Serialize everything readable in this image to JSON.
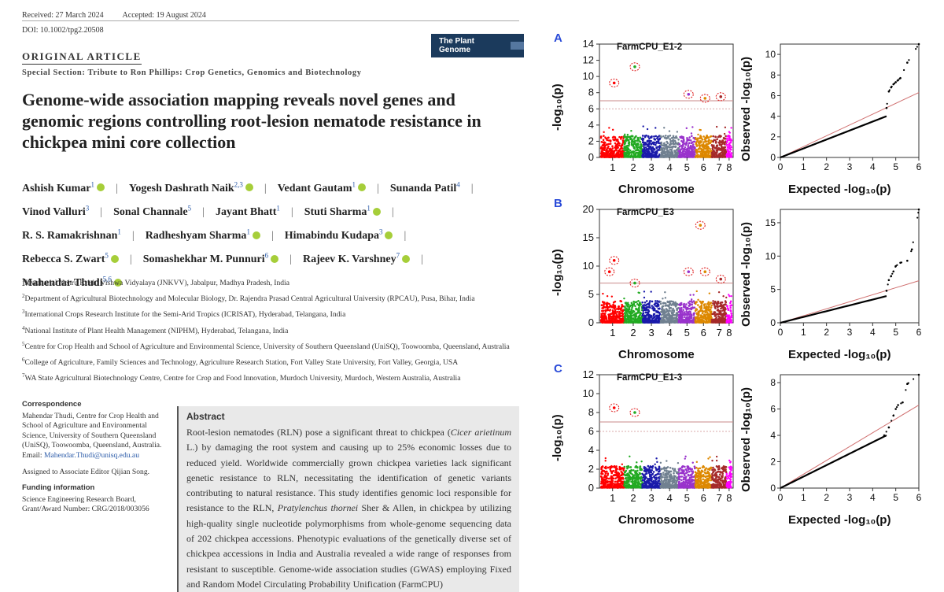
{
  "paper": {
    "received": "Received: 27 March 2024",
    "accepted": "Accepted: 19 August 2024",
    "doi": "DOI: 10.1002/tpg2.20508",
    "journal_logo": "The Plant Genome",
    "article_type": "ORIGINAL ARTICLE",
    "special_section": "Special Section: Tribute to Ron Phillips: Crop Genetics, Genomics and Biotechnology",
    "title": "Genome-wide association mapping reveals novel genes and genomic regions controlling root-lesion nematode resistance in chickpea mini core collection",
    "authors": [
      {
        "name": "Ashish Kumar",
        "sup": "1",
        "orcid": true
      },
      {
        "name": "Yogesh Dashrath Naik",
        "sup": "2,3",
        "orcid": true
      },
      {
        "name": "Vedant Gautam",
        "sup": "1",
        "orcid": true
      },
      {
        "name": "Sunanda Patil",
        "sup": "4",
        "orcid": false
      },
      {
        "name": "Vinod Valluri",
        "sup": "3",
        "orcid": false
      },
      {
        "name": "Sonal Channale",
        "sup": "5",
        "orcid": false
      },
      {
        "name": "Jayant Bhatt",
        "sup": "1",
        "orcid": false
      },
      {
        "name": "Stuti Sharma",
        "sup": "1",
        "orcid": true
      },
      {
        "name": "R. S. Ramakrishnan",
        "sup": "1",
        "orcid": false
      },
      {
        "name": "Radheshyam Sharma",
        "sup": "1",
        "orcid": true
      },
      {
        "name": "Himabindu Kudapa",
        "sup": "3",
        "orcid": true
      },
      {
        "name": "Rebecca S. Zwart",
        "sup": "5",
        "orcid": true
      },
      {
        "name": "Somashekhar M. Punnuri",
        "sup": "6",
        "orcid": true
      },
      {
        "name": "Rajeev K. Varshney",
        "sup": "7",
        "orcid": true
      },
      {
        "name": "Mahendar Thudi",
        "sup": "5,6",
        "orcid": true
      }
    ],
    "affiliations": [
      {
        "sup": "1",
        "text": "Jawaharlal Nehru Krishi Vishwa Vidyalaya (JNKVV), Jabalpur, Madhya Pradesh, India"
      },
      {
        "sup": "2",
        "text": "Department of Agricultural Biotechnology and Molecular Biology, Dr. Rajendra Prasad Central Agricultural University (RPCAU), Pusa, Bihar, India"
      },
      {
        "sup": "3",
        "text": "International Crops Research Institute for the Semi-Arid Tropics (ICRISAT), Hyderabad, Telangana, India"
      },
      {
        "sup": "4",
        "text": "National Institute of Plant Health Management (NIPHM), Hyderabad, Telangana, India"
      },
      {
        "sup": "5",
        "text": "Centre for Crop Health and School of Agriculture and Environmental Science, University of Southern Queensland (UniSQ), Toowoomba, Queensland, Australia"
      },
      {
        "sup": "6",
        "text": "College of Agriculture, Family Sciences and Technology, Agriculture Research Station, Fort Valley State University, Fort Valley, Georgia, USA"
      },
      {
        "sup": "7",
        "text": "WA State Agricultural Biotechnology Centre, Centre for Crop and Food Innovation, Murdoch University, Murdoch, Western Australia, Australia"
      }
    ],
    "correspondence_heading": "Correspondence",
    "correspondence_text": "Mahendar Thudi, Centre for Crop Health and School of Agriculture and Environmental Science, University of Southern Queensland (UniSQ), Toowoomba, Queensland, Australia.",
    "email_label": "Email:",
    "email": "Mahendar.Thudi@unisq.edu.au",
    "assigned": "Assigned to Associate Editor Qijian Song.",
    "funding_heading": "Funding information",
    "funding_text": "Science Engineering Research Board, Grant/Award Number: CRG/2018/003056",
    "abstract_heading": "Abstract",
    "abstract_1": "Root-lesion nematodes (RLN) pose a significant threat to chickpea (",
    "abstract_italic_1": "Cicer arietinum",
    "abstract_2": " L.) by damaging the root system and causing up to 25% economic losses due to reduced yield. Worldwide commercially grown chickpea varieties lack significant genetic resistance to RLN, necessitating the identification of genetic variants contributing to natural resistance. This study identifies genomic loci responsible for resistance to the RLN, ",
    "abstract_italic_2": "Pratylenchus thornei",
    "abstract_3": " Sher & Allen, in chickpea by utilizing high-quality single nucleotide polymorphisms from whole-genome sequencing data of 202 chickpea accessions. Phenotypic evaluations of the genetically diverse set of chickpea accessions in India and Australia revealed a wide range of responses from resistant to susceptible. Genome-wide association studies (GWAS) employing Fixed and Random Model Circulating Probability Unification (FarmCPU)"
  },
  "figure": {
    "panels": [
      {
        "label": "A",
        "title": "FarmCPU_E1-2"
      },
      {
        "label": "B",
        "title": "FarmCPU_E3"
      },
      {
        "label": "C",
        "title": "FarmCPU_E1-3"
      }
    ],
    "manhattan_xlabel": "Chromosome",
    "manhattan_ylabel": "-log₁₀(p)",
    "qq_xlabel": "Expected -log₁₀(p)",
    "qq_ylabel": "Observed -log₁₀(p)"
  },
  "chart_data": [
    {
      "type": "scatter",
      "subtype": "manhattan",
      "title": "FarmCPU_E1-2",
      "xlabel": "Chromosome",
      "ylabel": "-log10(p)",
      "chromosomes": [
        "1",
        "2",
        "3",
        "4",
        "5",
        "6",
        "7",
        "8"
      ],
      "chromosome_colors": [
        "#ff0000",
        "#22aa22",
        "#1a1aaa",
        "#708090",
        "#9933cc",
        "#dd8800",
        "#a52a2a",
        "#ff00ff"
      ],
      "ylim": [
        0,
        14
      ],
      "yticks": [
        0,
        2,
        4,
        6,
        8,
        10,
        12,
        14
      ],
      "thresholds": [
        7,
        6
      ],
      "significant": [
        {
          "chr": "1",
          "y": 9.2
        },
        {
          "chr": "2",
          "y": 11.2
        },
        {
          "chr": "5",
          "y": 7.8
        },
        {
          "chr": "6",
          "y": 7.3
        },
        {
          "chr": "7",
          "y": 7.5
        }
      ]
    },
    {
      "type": "scatter",
      "subtype": "qq",
      "xlabel": "Expected -log10(p)",
      "ylabel": "Observed -log10(p)",
      "xlim": [
        0,
        6
      ],
      "ylim": [
        0,
        11
      ],
      "xticks": [
        0,
        1,
        2,
        3,
        4,
        5,
        6
      ],
      "yticks": [
        0,
        2,
        4,
        6,
        8,
        10
      ],
      "upper_tail": [
        [
          4.6,
          4.8
        ],
        [
          4.7,
          6.4
        ],
        [
          4.8,
          6.8
        ],
        [
          4.9,
          7.1
        ],
        [
          5.0,
          7.3
        ],
        [
          5.1,
          7.5
        ],
        [
          5.2,
          7.7
        ],
        [
          5.5,
          9.2
        ],
        [
          6.0,
          11.0
        ]
      ]
    },
    {
      "type": "scatter",
      "subtype": "manhattan",
      "title": "FarmCPU_E3",
      "xlabel": "Chromosome",
      "ylabel": "-log10(p)",
      "chromosomes": [
        "1",
        "2",
        "3",
        "4",
        "5",
        "6",
        "7",
        "8"
      ],
      "ylim": [
        0,
        20
      ],
      "yticks": [
        0,
        5,
        10,
        15,
        20
      ],
      "thresholds": [
        7
      ],
      "significant": [
        {
          "chr": "1",
          "y": 11
        },
        {
          "chr": "1",
          "y": 9
        },
        {
          "chr": "2",
          "y": 7
        },
        {
          "chr": "5",
          "y": 9
        },
        {
          "chr": "6",
          "y": 9
        },
        {
          "chr": "6",
          "y": 17.2
        },
        {
          "chr": "7",
          "y": 7.7
        }
      ]
    },
    {
      "type": "scatter",
      "subtype": "qq",
      "xlabel": "Expected -log10(p)",
      "ylabel": "Observed -log10(p)",
      "xlim": [
        0,
        6
      ],
      "ylim": [
        0,
        17
      ],
      "xticks": [
        0,
        1,
        2,
        3,
        4,
        5,
        6
      ],
      "yticks": [
        0,
        5,
        10,
        15
      ],
      "upper_tail": [
        [
          4.6,
          4.8
        ],
        [
          4.7,
          6.4
        ],
        [
          4.8,
          7.0
        ],
        [
          4.9,
          7.7
        ],
        [
          5.0,
          8.5
        ],
        [
          5.2,
          9.0
        ],
        [
          5.5,
          9.3
        ],
        [
          5.7,
          11.0
        ],
        [
          6.0,
          17.0
        ]
      ]
    },
    {
      "type": "scatter",
      "subtype": "manhattan",
      "title": "FarmCPU_E1-3",
      "xlabel": "Chromosome",
      "ylabel": "-log10(p)",
      "chromosomes": [
        "1",
        "2",
        "3",
        "4",
        "5",
        "6",
        "7",
        "8"
      ],
      "ylim": [
        0,
        12
      ],
      "yticks": [
        0,
        2,
        4,
        6,
        8,
        10,
        12
      ],
      "thresholds": [
        7,
        6
      ],
      "significant": [
        {
          "chr": "1",
          "y": 8.5
        },
        {
          "chr": "2",
          "y": 8.0
        }
      ]
    },
    {
      "type": "scatter",
      "subtype": "qq",
      "xlabel": "Expected -log10(p)",
      "ylabel": "Observed -log10(p)",
      "xlim": [
        0,
        6
      ],
      "ylim": [
        0,
        8.6
      ],
      "xticks": [
        0,
        1,
        2,
        3,
        4,
        5,
        6
      ],
      "yticks": [
        0,
        2,
        4,
        6,
        8
      ],
      "upper_tail": [
        [
          4.5,
          4.0
        ],
        [
          4.7,
          4.6
        ],
        [
          4.9,
          5.5
        ],
        [
          5.0,
          6.0
        ],
        [
          5.1,
          6.3
        ],
        [
          5.3,
          6.5
        ],
        [
          5.5,
          7.9
        ],
        [
          6.0,
          8.6
        ]
      ]
    }
  ]
}
